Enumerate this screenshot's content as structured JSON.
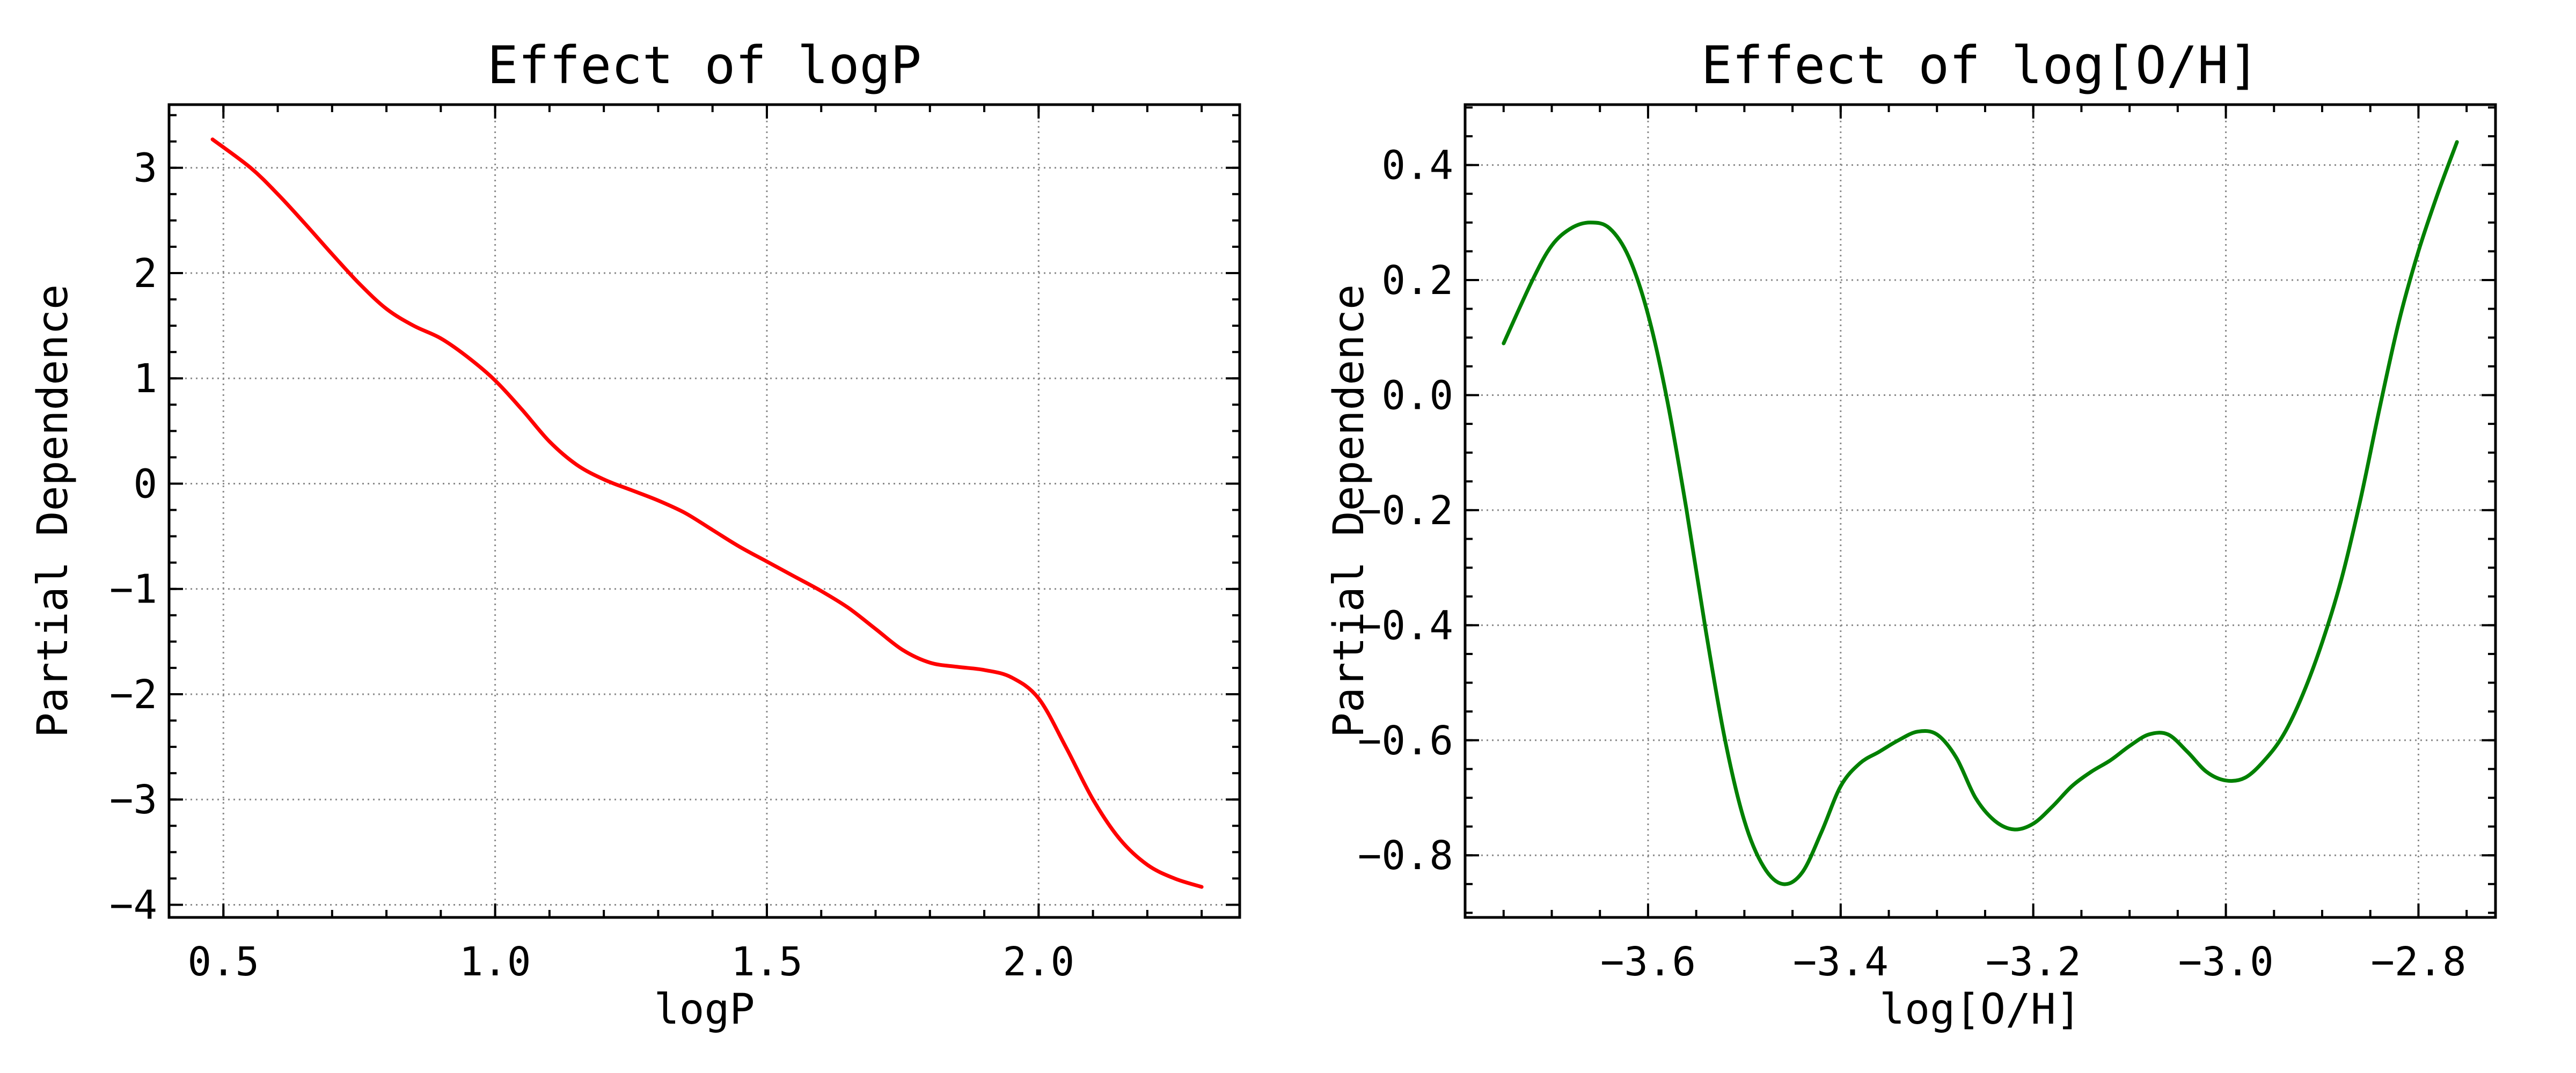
{
  "figure": {
    "background": "#ffffff",
    "grid": true,
    "grid_style": "dotted",
    "tick_direction": "in",
    "ticks_on_all_sides": true,
    "minor_ticks": true
  },
  "chart_data": [
    {
      "type": "line",
      "title": "Effect of logP",
      "xlabel": "logP",
      "ylabel": "Partial Dependence",
      "xlim": [
        0.4,
        2.37
      ],
      "ylim": [
        -4.12,
        3.6
      ],
      "x_ticks": [
        0.5,
        1.0,
        1.5,
        2.0
      ],
      "x_tick_labels": [
        "0.5",
        "1.0",
        "1.5",
        "2.0"
      ],
      "y_ticks": [
        -4,
        -3,
        -2,
        -1,
        0,
        1,
        2,
        3
      ],
      "y_tick_labels": [
        "−4",
        "−3",
        "−2",
        "−1",
        "0",
        "1",
        "2",
        "3"
      ],
      "x_minor_step": 0.1,
      "y_minor_step": 0.25,
      "series": [
        {
          "color": "#ff0000",
          "x": [
            0.48,
            0.55,
            0.6,
            0.65,
            0.7,
            0.75,
            0.8,
            0.85,
            0.9,
            0.95,
            1.0,
            1.05,
            1.1,
            1.15,
            1.2,
            1.25,
            1.3,
            1.35,
            1.4,
            1.45,
            1.5,
            1.55,
            1.6,
            1.65,
            1.7,
            1.75,
            1.8,
            1.85,
            1.9,
            1.95,
            2.0,
            2.05,
            2.1,
            2.15,
            2.2,
            2.25,
            2.3
          ],
          "y": [
            3.27,
            3.0,
            2.75,
            2.47,
            2.18,
            1.9,
            1.66,
            1.5,
            1.38,
            1.2,
            0.98,
            0.7,
            0.4,
            0.18,
            0.04,
            -0.06,
            -0.16,
            -0.28,
            -0.44,
            -0.6,
            -0.74,
            -0.88,
            -1.02,
            -1.18,
            -1.38,
            -1.58,
            -1.7,
            -1.74,
            -1.77,
            -1.84,
            -2.04,
            -2.5,
            -3.0,
            -3.38,
            -3.62,
            -3.75,
            -3.83
          ]
        }
      ]
    },
    {
      "type": "line",
      "title": "Effect of log[O/H]",
      "xlabel": "log[O/H]",
      "ylabel": "Partial Dependence",
      "xlim": [
        -3.79,
        -2.72
      ],
      "ylim": [
        -0.908,
        0.505
      ],
      "x_ticks": [
        -3.6,
        -3.4,
        -3.2,
        -3.0,
        -2.8
      ],
      "x_tick_labels": [
        "−3.6",
        "−3.4",
        "−3.2",
        "−3.0",
        "−2.8"
      ],
      "y_ticks": [
        -0.8,
        -0.6,
        -0.4,
        -0.2,
        0.0,
        0.2,
        0.4
      ],
      "y_tick_labels": [
        "−0.8",
        "−0.6",
        "−0.4",
        "−0.2",
        "0.0",
        "0.2",
        "0.4"
      ],
      "x_minor_step": 0.05,
      "y_minor_step": 0.05,
      "series": [
        {
          "color": "#008000",
          "x": [
            -3.75,
            -3.72,
            -3.7,
            -3.68,
            -3.66,
            -3.64,
            -3.62,
            -3.6,
            -3.58,
            -3.56,
            -3.54,
            -3.52,
            -3.5,
            -3.48,
            -3.46,
            -3.44,
            -3.42,
            -3.4,
            -3.38,
            -3.36,
            -3.34,
            -3.32,
            -3.3,
            -3.28,
            -3.26,
            -3.24,
            -3.22,
            -3.2,
            -3.18,
            -3.16,
            -3.14,
            -3.12,
            -3.1,
            -3.08,
            -3.06,
            -3.04,
            -3.02,
            -3.0,
            -2.98,
            -2.96,
            -2.94,
            -2.92,
            -2.9,
            -2.88,
            -2.86,
            -2.84,
            -2.82,
            -2.8,
            -2.78,
            -2.76
          ],
          "y": [
            0.09,
            0.2,
            0.26,
            0.29,
            0.3,
            0.29,
            0.24,
            0.14,
            -0.01,
            -0.2,
            -0.41,
            -0.6,
            -0.74,
            -0.82,
            -0.85,
            -0.83,
            -0.76,
            -0.68,
            -0.64,
            -0.62,
            -0.6,
            -0.585,
            -0.59,
            -0.63,
            -0.7,
            -0.74,
            -0.755,
            -0.745,
            -0.715,
            -0.68,
            -0.655,
            -0.635,
            -0.61,
            -0.59,
            -0.59,
            -0.62,
            -0.655,
            -0.67,
            -0.665,
            -0.635,
            -0.59,
            -0.52,
            -0.43,
            -0.32,
            -0.18,
            -0.02,
            0.13,
            0.25,
            0.35,
            0.44
          ]
        }
      ]
    }
  ]
}
